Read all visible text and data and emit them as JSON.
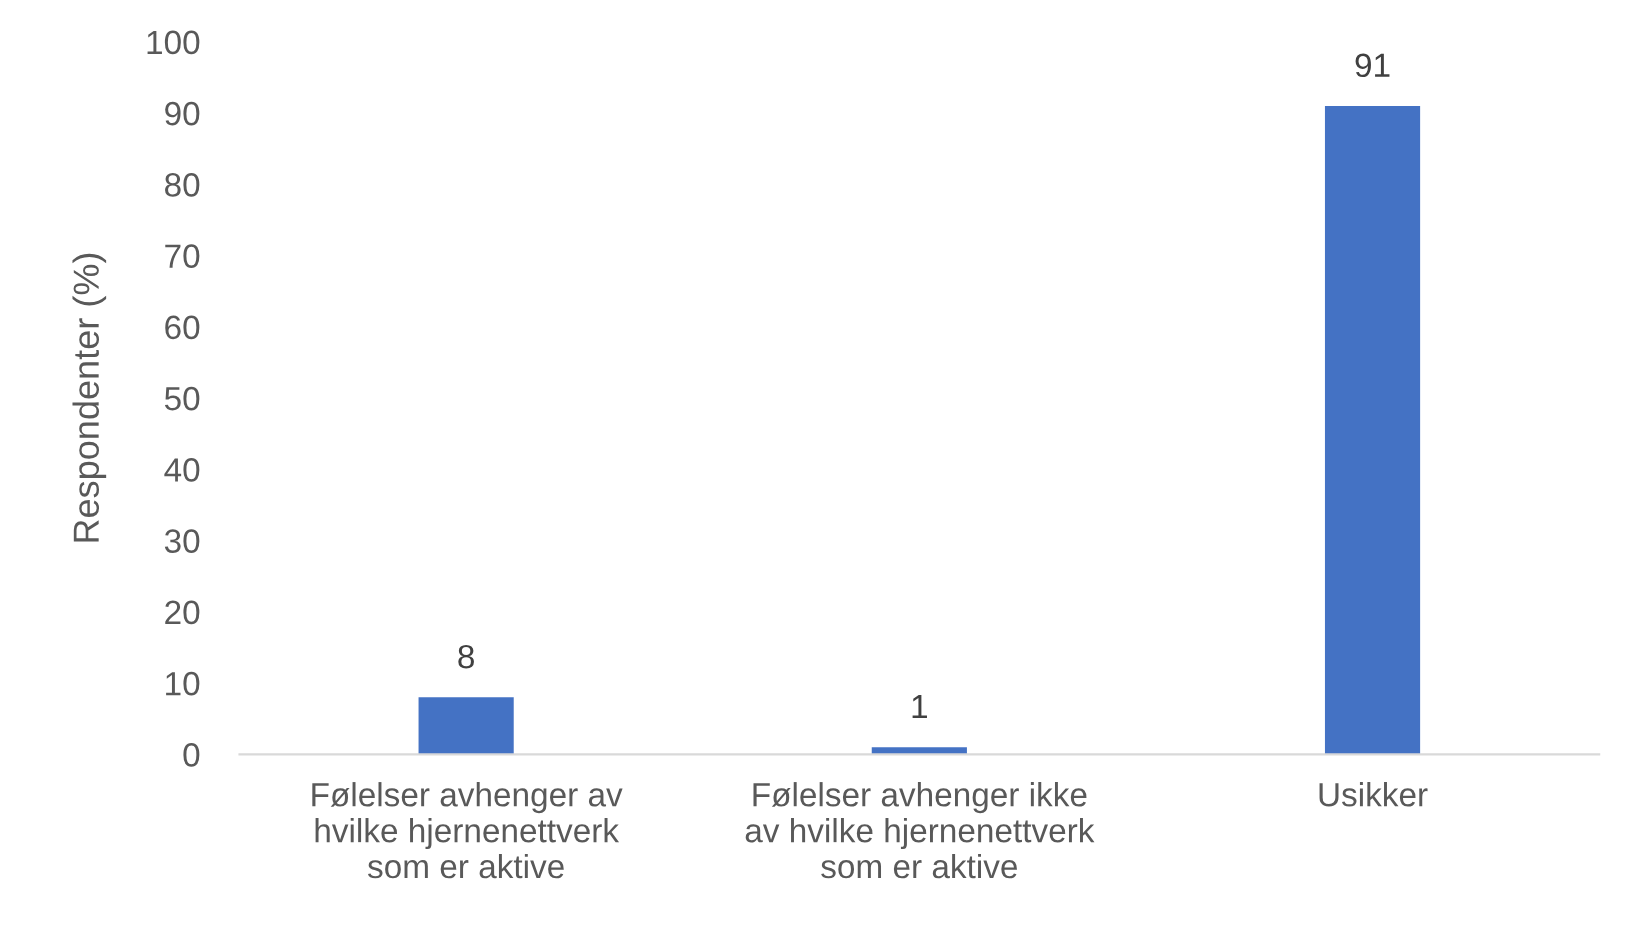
{
  "chart_data": {
    "type": "bar",
    "ylabel": "Respondenter (%)",
    "categories": [
      "Følelser avhenger av\nhvilke hjernenettverk\nsom er aktive",
      "Følelser avhenger ikke\nav hvilke hjernenettverk\nsom er aktive",
      "Usikker"
    ],
    "values": [
      8,
      1,
      91
    ],
    "color": "#4472c4",
    "ylim": [
      0,
      100
    ],
    "yticks": [
      0,
      10,
      20,
      30,
      40,
      50,
      60,
      70,
      80,
      90,
      100
    ],
    "grid": false,
    "data_labels": true
  }
}
